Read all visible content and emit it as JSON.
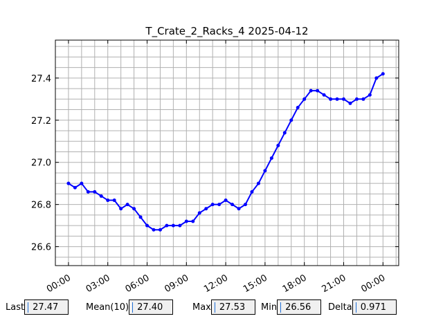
{
  "chart_data": {
    "type": "line",
    "title": "T_Crate_2_Racks_4 2025-04-12",
    "xlabel": "",
    "ylabel": "",
    "x_tick_labels": [
      "00:00",
      "03:00",
      "06:00",
      "09:00",
      "12:00",
      "15:00",
      "18:00",
      "21:00",
      "00:00"
    ],
    "x_tick_hours": [
      0,
      3,
      6,
      9,
      12,
      15,
      18,
      21,
      24
    ],
    "xlim_hours": [
      -1.0,
      25.2
    ],
    "y_tick_labels": [
      "26.6",
      "26.8",
      "27.0",
      "27.2",
      "27.4"
    ],
    "y_ticks": [
      26.6,
      26.8,
      27.0,
      27.2,
      27.4
    ],
    "ylim": [
      26.51,
      27.58
    ],
    "grid": true,
    "series": [
      {
        "color": "#0000ff",
        "marker": "circle",
        "x_hours": [
          0.0,
          0.5,
          1.0,
          1.5,
          2.0,
          2.5,
          3.0,
          3.5,
          4.0,
          4.5,
          5.0,
          5.5,
          6.0,
          6.5,
          7.0,
          7.5,
          8.0,
          8.5,
          9.0,
          9.5,
          10.0,
          10.5,
          11.0,
          11.5,
          12.0,
          12.5,
          13.0,
          13.5,
          14.0,
          14.5,
          15.0,
          15.5,
          16.0,
          16.5,
          17.0,
          17.5,
          18.0,
          18.5,
          19.0,
          19.5,
          20.0,
          20.5,
          21.0,
          21.5,
          22.0,
          22.5,
          23.0,
          23.5,
          24.0
        ],
        "y": [
          26.9,
          26.88,
          26.9,
          26.86,
          26.86,
          26.84,
          26.82,
          26.82,
          26.78,
          26.8,
          26.78,
          26.74,
          26.7,
          26.68,
          26.68,
          26.7,
          26.7,
          26.7,
          26.72,
          26.72,
          26.76,
          26.78,
          26.8,
          26.8,
          26.82,
          26.8,
          26.78,
          26.8,
          26.86,
          26.9,
          26.96,
          27.02,
          27.08,
          27.14,
          27.2,
          27.26,
          27.3,
          27.34,
          27.34,
          27.32,
          27.3,
          27.3,
          27.3,
          27.28,
          27.3,
          27.3,
          27.32,
          27.4,
          27.42
        ]
      }
    ],
    "stats": [
      {
        "label": "Last",
        "value": "27.47"
      },
      {
        "label": "Mean(10)",
        "value": "27.40"
      },
      {
        "label": "Max",
        "value": "27.53"
      },
      {
        "label": "Min",
        "value": "26.56"
      },
      {
        "label": "Delta",
        "value": "0.971"
      }
    ]
  }
}
